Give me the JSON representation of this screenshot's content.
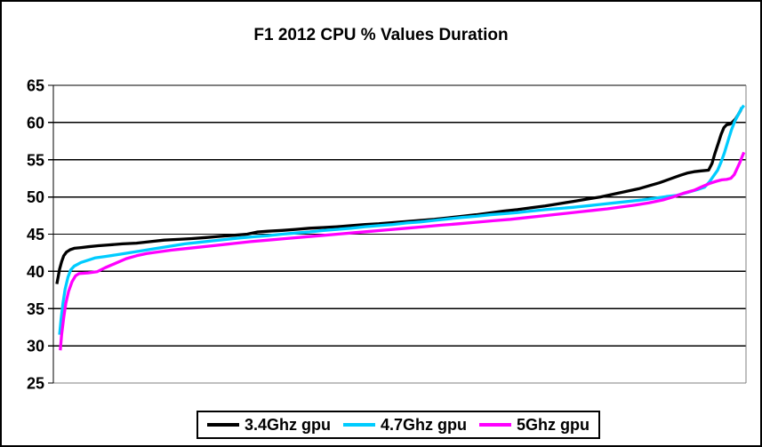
{
  "chart_data": {
    "type": "line",
    "title": "F1 2012 CPU % Values Duration",
    "xlabel": "",
    "ylabel": "",
    "ylim": [
      25,
      65
    ],
    "yticks": [
      65,
      60,
      55,
      50,
      45,
      40,
      35,
      30,
      25
    ],
    "x_range_percent": [
      0,
      100
    ],
    "grid": "horizontal-black",
    "legend_position": "bottom-center",
    "axis_colors": {
      "value_axis": "#000000",
      "category_axis": "#808080",
      "plot_border_right": "#808080",
      "gridline": "#000000"
    },
    "series": [
      {
        "name": "3.4Ghz gpu",
        "color": "#000000",
        "points": [
          [
            0.5,
            38.3
          ],
          [
            0.7,
            39.3
          ],
          [
            0.9,
            40.3
          ],
          [
            1.2,
            41.3
          ],
          [
            1.5,
            42.1
          ],
          [
            1.9,
            42.6
          ],
          [
            2.4,
            42.9
          ],
          [
            3,
            43.1
          ],
          [
            4,
            43.2
          ],
          [
            5,
            43.3
          ],
          [
            6.5,
            43.45
          ],
          [
            8,
            43.55
          ],
          [
            10,
            43.7
          ],
          [
            12,
            43.8
          ],
          [
            14,
            44.0
          ],
          [
            16,
            44.2
          ],
          [
            18,
            44.3
          ],
          [
            20,
            44.4
          ],
          [
            22,
            44.55
          ],
          [
            24,
            44.7
          ],
          [
            26,
            44.85
          ],
          [
            28,
            45.0
          ],
          [
            29.5,
            45.3
          ],
          [
            31,
            45.4
          ],
          [
            33,
            45.5
          ],
          [
            35,
            45.65
          ],
          [
            37,
            45.8
          ],
          [
            39,
            45.9
          ],
          [
            41,
            46.0
          ],
          [
            43,
            46.15
          ],
          [
            45,
            46.3
          ],
          [
            47,
            46.4
          ],
          [
            49,
            46.55
          ],
          [
            51,
            46.7
          ],
          [
            53,
            46.85
          ],
          [
            55,
            47.0
          ],
          [
            57,
            47.2
          ],
          [
            59,
            47.4
          ],
          [
            61,
            47.6
          ],
          [
            63,
            47.85
          ],
          [
            65,
            48.1
          ],
          [
            67,
            48.3
          ],
          [
            69,
            48.55
          ],
          [
            71,
            48.8
          ],
          [
            73,
            49.1
          ],
          [
            75,
            49.4
          ],
          [
            77,
            49.7
          ],
          [
            79,
            50.0
          ],
          [
            81,
            50.4
          ],
          [
            83,
            50.8
          ],
          [
            84.5,
            51.1
          ],
          [
            86,
            51.5
          ],
          [
            87.5,
            51.9
          ],
          [
            89,
            52.4
          ],
          [
            90.5,
            52.9
          ],
          [
            91.5,
            53.2
          ],
          [
            92.5,
            53.4
          ],
          [
            93.5,
            53.5
          ],
          [
            94.6,
            53.6
          ],
          [
            95.1,
            54.5
          ],
          [
            95.5,
            55.8
          ],
          [
            96,
            57.2
          ],
          [
            96.4,
            58.4
          ],
          [
            96.8,
            59.3
          ],
          [
            97.2,
            59.7
          ],
          [
            97.7,
            59.8
          ],
          [
            98.1,
            60.1
          ],
          [
            98.5,
            60.5
          ],
          [
            98.9,
            61.1
          ],
          [
            99.2,
            61.6
          ],
          [
            99.4,
            62.0
          ]
        ]
      },
      {
        "name": "4.7Ghz gpu",
        "color": "#00CCFF",
        "points": [
          [
            0.9,
            31.5
          ],
          [
            1.1,
            33.5
          ],
          [
            1.4,
            35.8
          ],
          [
            1.7,
            37.6
          ],
          [
            2.1,
            39.2
          ],
          [
            2.5,
            40.2
          ],
          [
            3,
            40.7
          ],
          [
            4,
            41.2
          ],
          [
            5,
            41.5
          ],
          [
            6,
            41.8
          ],
          [
            7.5,
            42.0
          ],
          [
            9,
            42.2
          ],
          [
            11,
            42.5
          ],
          [
            13,
            42.8
          ],
          [
            15,
            43.1
          ],
          [
            17,
            43.4
          ],
          [
            19,
            43.7
          ],
          [
            21,
            43.9
          ],
          [
            23,
            44.1
          ],
          [
            25,
            44.3
          ],
          [
            27,
            44.5
          ],
          [
            29,
            44.65
          ],
          [
            31,
            44.8
          ],
          [
            33,
            45.0
          ],
          [
            35,
            45.15
          ],
          [
            37,
            45.3
          ],
          [
            39,
            45.5
          ],
          [
            41,
            45.65
          ],
          [
            43,
            45.8
          ],
          [
            45,
            46.0
          ],
          [
            47,
            46.15
          ],
          [
            49,
            46.3
          ],
          [
            51,
            46.5
          ],
          [
            53,
            46.65
          ],
          [
            55,
            46.85
          ],
          [
            57,
            47.05
          ],
          [
            59,
            47.25
          ],
          [
            61,
            47.4
          ],
          [
            63,
            47.6
          ],
          [
            65,
            47.75
          ],
          [
            67,
            47.9
          ],
          [
            69,
            48.1
          ],
          [
            71,
            48.3
          ],
          [
            73,
            48.45
          ],
          [
            75,
            48.6
          ],
          [
            77,
            48.8
          ],
          [
            79,
            49.0
          ],
          [
            81,
            49.2
          ],
          [
            83,
            49.4
          ],
          [
            85,
            49.6
          ],
          [
            87,
            49.85
          ],
          [
            88.5,
            50.05
          ],
          [
            90,
            50.2
          ],
          [
            91.5,
            50.6
          ],
          [
            93,
            51.0
          ],
          [
            94,
            51.3
          ],
          [
            94.7,
            52.0
          ],
          [
            95.3,
            52.8
          ],
          [
            95.9,
            53.6
          ],
          [
            96.4,
            54.7
          ],
          [
            96.9,
            56.0
          ],
          [
            97.4,
            57.5
          ],
          [
            97.9,
            59.0
          ],
          [
            98.4,
            60.2
          ],
          [
            98.9,
            61.1
          ],
          [
            99.3,
            61.8
          ],
          [
            99.7,
            62.3
          ]
        ]
      },
      {
        "name": "5Ghz gpu",
        "color": "#FF00FF",
        "points": [
          [
            1.0,
            29.4
          ],
          [
            1.2,
            31.5
          ],
          [
            1.5,
            33.8
          ],
          [
            1.8,
            35.7
          ],
          [
            2.2,
            37.3
          ],
          [
            2.7,
            38.6
          ],
          [
            3.2,
            39.4
          ],
          [
            3.7,
            39.7
          ],
          [
            5,
            39.8
          ],
          [
            6.3,
            39.95
          ],
          [
            7.5,
            40.5
          ],
          [
            9,
            41.1
          ],
          [
            10.5,
            41.7
          ],
          [
            12,
            42.1
          ],
          [
            13.5,
            42.4
          ],
          [
            15,
            42.6
          ],
          [
            17,
            42.85
          ],
          [
            19,
            43.05
          ],
          [
            21,
            43.25
          ],
          [
            23.5,
            43.5
          ],
          [
            26,
            43.75
          ],
          [
            28.5,
            44.0
          ],
          [
            31,
            44.2
          ],
          [
            33.5,
            44.4
          ],
          [
            36,
            44.6
          ],
          [
            38.5,
            44.8
          ],
          [
            41,
            45.0
          ],
          [
            43.5,
            45.2
          ],
          [
            46,
            45.4
          ],
          [
            48.5,
            45.6
          ],
          [
            51,
            45.8
          ],
          [
            53.5,
            46.0
          ],
          [
            56,
            46.2
          ],
          [
            58.5,
            46.4
          ],
          [
            61,
            46.6
          ],
          [
            63.5,
            46.8
          ],
          [
            66,
            47.0
          ],
          [
            68.5,
            47.25
          ],
          [
            71,
            47.5
          ],
          [
            73.5,
            47.75
          ],
          [
            76,
            48.0
          ],
          [
            78,
            48.2
          ],
          [
            80,
            48.4
          ],
          [
            82,
            48.65
          ],
          [
            84,
            48.9
          ],
          [
            86,
            49.2
          ],
          [
            88,
            49.6
          ],
          [
            89.5,
            50.0
          ],
          [
            91,
            50.5
          ],
          [
            92.5,
            50.9
          ],
          [
            93.7,
            51.4
          ],
          [
            94.7,
            51.8
          ],
          [
            95.7,
            52.1
          ],
          [
            96.5,
            52.3
          ],
          [
            97.2,
            52.35
          ],
          [
            97.8,
            52.5
          ],
          [
            98.3,
            53.0
          ],
          [
            98.7,
            53.8
          ],
          [
            99.1,
            54.6
          ],
          [
            99.4,
            55.3
          ],
          [
            99.7,
            56.0
          ]
        ]
      }
    ]
  },
  "legend": {
    "items": [
      {
        "label": "3.4Ghz gpu",
        "color": "#000000"
      },
      {
        "label": "4.7Ghz gpu",
        "color": "#00CCFF"
      },
      {
        "label": "5Ghz gpu",
        "color": "#FF00FF"
      }
    ]
  }
}
